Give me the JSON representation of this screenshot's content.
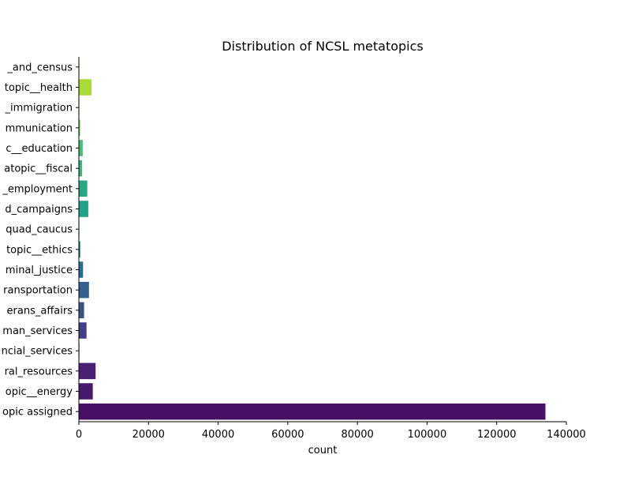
{
  "chart_data": {
    "type": "bar",
    "orientation": "horizontal",
    "title": "Distribution of NCSL metatopics",
    "xlabel": "count",
    "ylabel": "",
    "xlim": [
      0,
      140000
    ],
    "x_ticks": [
      0,
      20000,
      40000,
      60000,
      80000,
      100000,
      120000,
      140000
    ],
    "grid": false,
    "categories": [
      "_and_census",
      "topic__health",
      "_immigration",
      "mmunication",
      "c__education",
      "atopic__fiscal",
      "_employment",
      "d_campaigns",
      "quad_caucus",
      "topic__ethics",
      "minal_justice",
      "ransportation",
      "erans_affairs",
      "man_services",
      "ncial_services",
      "ral_resources",
      "opic__energy",
      "opic assigned"
    ],
    "values": [
      150,
      3600,
      120,
      350,
      1100,
      900,
      2400,
      2700,
      100,
      400,
      1200,
      2900,
      1500,
      2200,
      150,
      4800,
      4000,
      134000
    ],
    "colors": [
      "#c6e21e",
      "#a8db34",
      "#86d449",
      "#62cb5f",
      "#44bf70",
      "#35b779",
      "#24a884",
      "#20a386",
      "#23898e",
      "#2a788e",
      "#2f6b8e",
      "#355f8d",
      "#3b528b",
      "#433e85",
      "#472c7a",
      "#482173",
      "#481a6c",
      "#471063"
    ]
  }
}
